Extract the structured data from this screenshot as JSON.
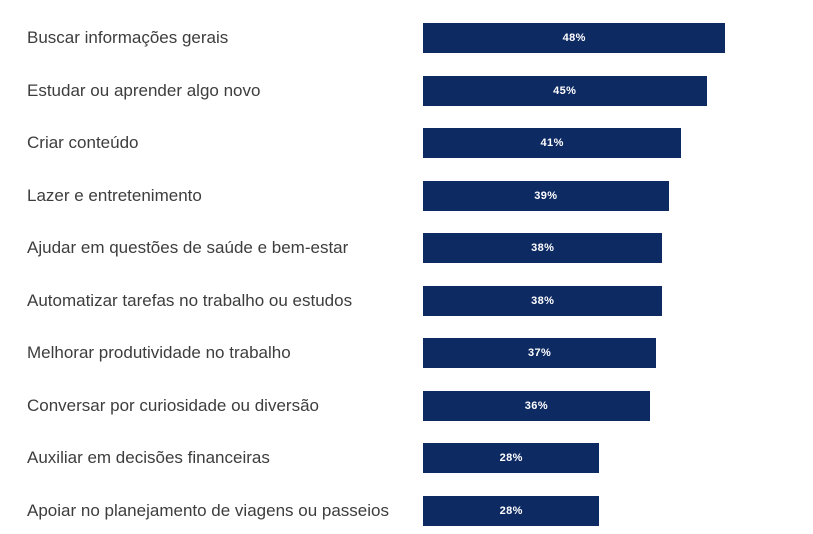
{
  "chart_data": {
    "type": "bar",
    "orientation": "horizontal",
    "title": "",
    "xlabel": "",
    "ylabel": "",
    "categories": [
      "Buscar informações gerais",
      "Estudar ou aprender algo novo",
      "Criar conteúdo",
      "Lazer e entretenimento",
      "Ajudar em questões de saúde e bem-estar",
      "Automatizar tarefas no trabalho ou estudos",
      "Melhorar produtividade no trabalho",
      "Conversar por curiosidade ou diversão",
      "Auxiliar em decisões financeiras",
      "Apoiar no planejamento de viagens ou passeios"
    ],
    "values": [
      48,
      45,
      41,
      39,
      38,
      38,
      37,
      36,
      28,
      28
    ],
    "value_labels": [
      "48%",
      "45%",
      "41%",
      "39%",
      "38%",
      "38%",
      "37%",
      "36%",
      "28%",
      "28%"
    ],
    "value_suffix": "%",
    "xlim": [
      0,
      48
    ],
    "grid": false,
    "legend": "none",
    "bar_color": "#0e2a63",
    "value_label_color": "#ffffff",
    "category_label_color": "#3d3d3d",
    "background_color": "#ffffff"
  }
}
